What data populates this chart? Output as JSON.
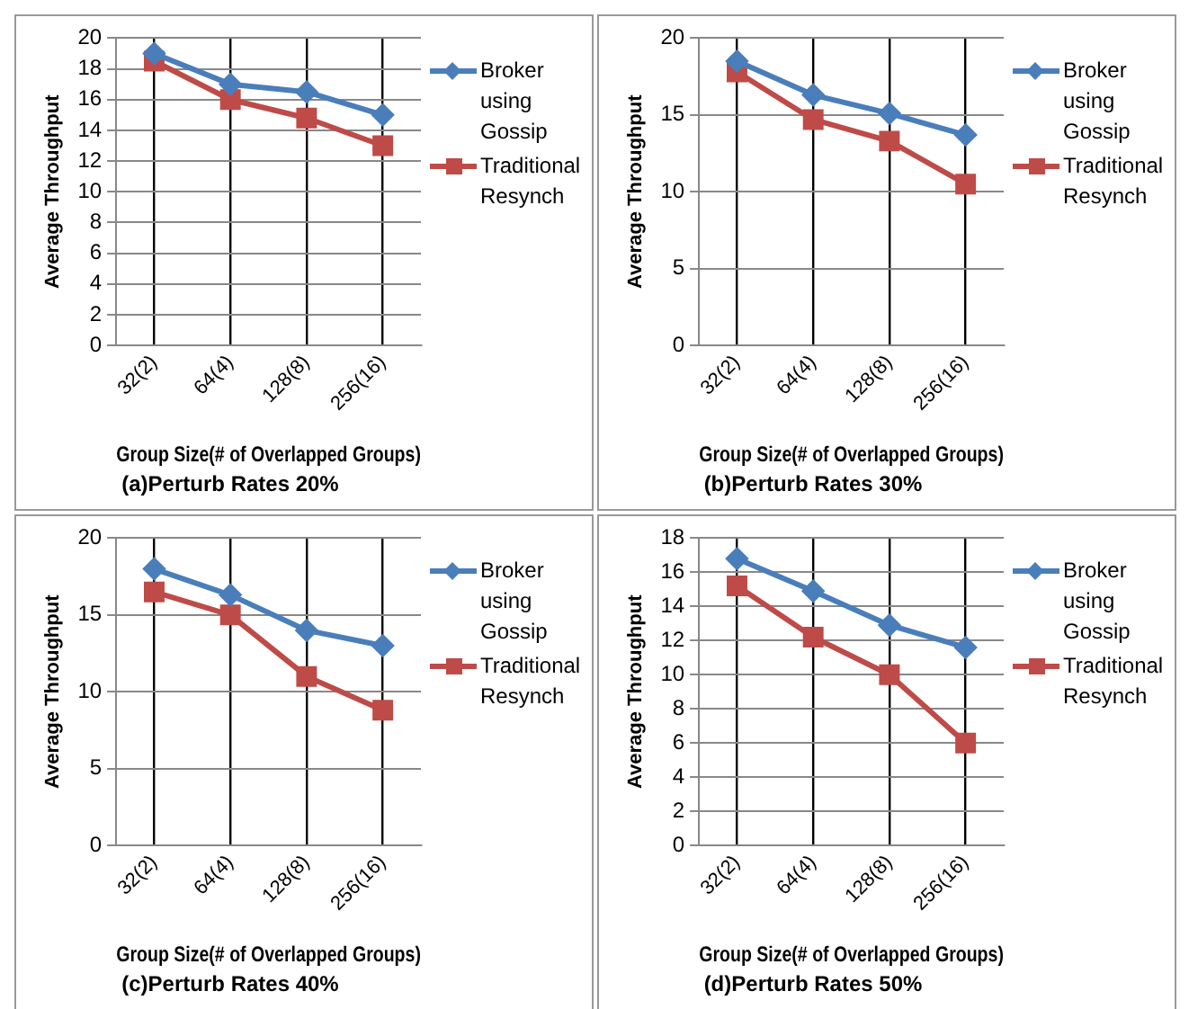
{
  "chart_data": [
    {
      "type": "line",
      "title": "(a)Perturb Rates 20%",
      "xlabel": "Group Size(# of Overlapped Groups)",
      "ylabel": "Average Throughput",
      "categories": [
        "32(2)",
        "64(4)",
        "128(8)",
        "256(16)"
      ],
      "series": [
        {
          "name": "Broker using Gossip",
          "color": "#4a7ebb",
          "marker": "diamond",
          "values": [
            19,
            17,
            16.5,
            15
          ]
        },
        {
          "name": "Traditional Resynch",
          "color": "#be4b48",
          "marker": "square",
          "values": [
            18.5,
            16,
            14.8,
            13
          ]
        }
      ],
      "ylim": [
        0,
        20
      ],
      "yticks": [
        0,
        2,
        4,
        6,
        8,
        10,
        12,
        14,
        16,
        18,
        20
      ],
      "grid": true,
      "legend": "right"
    },
    {
      "type": "line",
      "title": "(b)Perturb Rates 30%",
      "xlabel": "Group Size(# of Overlapped Groups)",
      "ylabel": "Average Throughput",
      "categories": [
        "32(2)",
        "64(4)",
        "128(8)",
        "256(16)"
      ],
      "series": [
        {
          "name": "Broker using Gossip",
          "color": "#4a7ebb",
          "marker": "diamond",
          "values": [
            18.5,
            16.3,
            15.1,
            13.7
          ]
        },
        {
          "name": "Traditional Resynch",
          "color": "#be4b48",
          "marker": "square",
          "values": [
            17.8,
            14.7,
            13.3,
            10.5
          ]
        }
      ],
      "ylim": [
        0,
        20
      ],
      "yticks": [
        0,
        5,
        10,
        15,
        20
      ],
      "grid": true,
      "legend": "right"
    },
    {
      "type": "line",
      "title": "(c)Perturb Rates 40%",
      "xlabel": "Group Size(# of Overlapped Groups)",
      "ylabel": "Average Throughput",
      "categories": [
        "32(2)",
        "64(4)",
        "128(8)",
        "256(16)"
      ],
      "series": [
        {
          "name": "Broker using Gossip",
          "color": "#4a7ebb",
          "marker": "diamond",
          "values": [
            18,
            16.3,
            14,
            13
          ]
        },
        {
          "name": "Traditional Resynch",
          "color": "#be4b48",
          "marker": "square",
          "values": [
            16.5,
            15,
            11,
            8.8
          ]
        }
      ],
      "ylim": [
        0,
        20
      ],
      "yticks": [
        0,
        5,
        10,
        15,
        20
      ],
      "grid": true,
      "legend": "right"
    },
    {
      "type": "line",
      "title": "(d)Perturb Rates 50%",
      "xlabel": "Group Size(# of Overlapped Groups)",
      "ylabel": "Average Throughput",
      "categories": [
        "32(2)",
        "64(4)",
        "128(8)",
        "256(16)"
      ],
      "series": [
        {
          "name": "Broker using Gossip",
          "color": "#4a7ebb",
          "marker": "diamond",
          "values": [
            16.8,
            14.9,
            12.9,
            11.6
          ]
        },
        {
          "name": "Traditional Resynch",
          "color": "#be4b48",
          "marker": "square",
          "values": [
            15.2,
            12.2,
            10,
            6
          ]
        }
      ],
      "ylim": [
        0,
        18
      ],
      "yticks": [
        0,
        2,
        4,
        6,
        8,
        10,
        12,
        14,
        16,
        18
      ],
      "grid": true,
      "legend": "right"
    }
  ]
}
